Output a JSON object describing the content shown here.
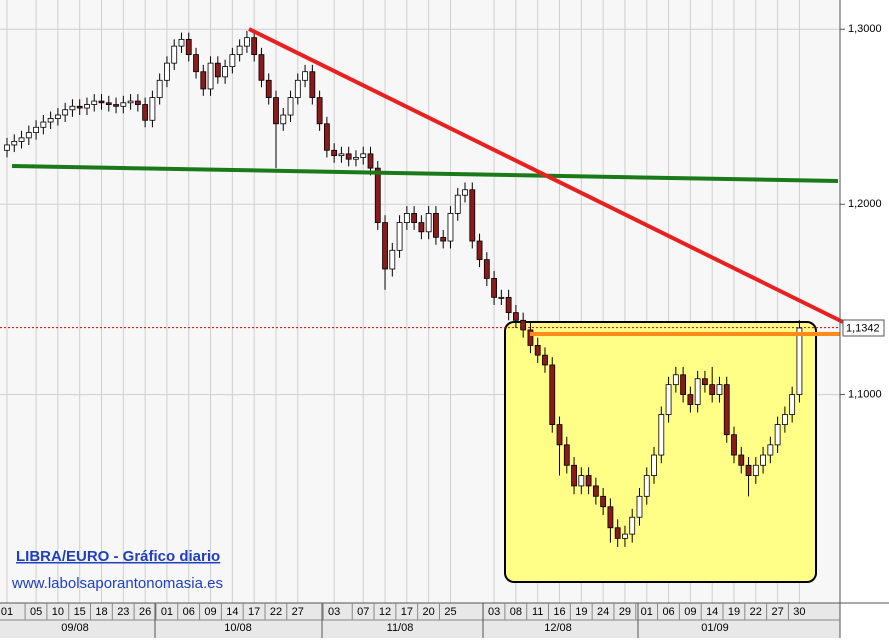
{
  "chart_data": {
    "type": "candlestick",
    "title": "LIBRA/EURO - Gráfico diario",
    "subtitle": "www.labolsaporantonomasia.es",
    "log_scale": true,
    "grid": true,
    "up_color": "#ffffff",
    "down_color": "#8b1a1a",
    "ylim": [
      1.0,
      1.3175
    ],
    "yticks": [
      {
        "value": 1.1,
        "label": "1,1000"
      },
      {
        "value": 1.2,
        "label": "1,2000"
      },
      {
        "value": 1.3,
        "label": "1,3000"
      }
    ],
    "current_price": {
      "value": 1.1342,
      "label": "1,1342"
    },
    "month_labels": [
      "09/08",
      "10/08",
      "11/08",
      "12/08",
      "01/09"
    ],
    "categories": [
      "01",
      null,
      null,
      null,
      "05",
      null,
      null,
      "10",
      null,
      null,
      "15",
      null,
      null,
      "18",
      null,
      null,
      "23",
      null,
      null,
      "26",
      null,
      null,
      "01",
      null,
      null,
      "06",
      null,
      null,
      "09",
      null,
      null,
      "14",
      null,
      null,
      "17",
      null,
      null,
      "22",
      null,
      null,
      "27",
      null,
      null,
      null,
      null,
      "03",
      null,
      null,
      null,
      "07",
      null,
      null,
      "12",
      null,
      null,
      "17",
      null,
      null,
      "20",
      null,
      null,
      "25",
      null,
      null,
      null,
      null,
      null,
      "03",
      null,
      null,
      "08",
      null,
      null,
      "11",
      null,
      null,
      "16",
      null,
      null,
      "19",
      null,
      null,
      "24",
      null,
      null,
      "29",
      null,
      null,
      "01",
      null,
      null,
      "06",
      null,
      null,
      "09",
      null,
      null,
      "14",
      null,
      null,
      "19",
      null,
      null,
      "22",
      null,
      null,
      "27",
      null,
      null,
      "30"
    ],
    "open": [
      1.23,
      1.233,
      1.235,
      1.237,
      1.24,
      1.243,
      1.246,
      1.248,
      1.25,
      1.253,
      1.255,
      1.254,
      1.256,
      1.258,
      1.257,
      1.256,
      1.255,
      1.257,
      1.258,
      1.256,
      1.247,
      1.26,
      1.27,
      1.28,
      1.29,
      1.294,
      1.285,
      1.275,
      1.265,
      1.28,
      1.272,
      1.278,
      1.285,
      1.29,
      1.295,
      1.285,
      1.27,
      1.26,
      1.245,
      1.25,
      1.26,
      1.27,
      1.275,
      1.26,
      1.245,
      1.23,
      1.227,
      1.228,
      1.225,
      1.226,
      1.228,
      1.22,
      1.19,
      1.165,
      1.175,
      1.19,
      1.195,
      1.19,
      1.185,
      1.195,
      1.182,
      1.18,
      1.195,
      1.205,
      1.208,
      1.18,
      1.17,
      1.16,
      1.15,
      1.15,
      1.142,
      1.138,
      1.133,
      1.125,
      1.12,
      1.115,
      1.085,
      1.075,
      1.065,
      1.055,
      1.06,
      1.055,
      1.05,
      1.045,
      1.035,
      1.03,
      1.032,
      1.04,
      1.05,
      1.06,
      1.07,
      1.09,
      1.105,
      1.11,
      1.1,
      1.095,
      1.108,
      1.105,
      1.1,
      1.105,
      1.08,
      1.07,
      1.065,
      1.06,
      1.065,
      1.07,
      1.075,
      1.085,
      1.09,
      1.1
    ],
    "high": [
      1.237,
      1.239,
      1.241,
      1.244,
      1.247,
      1.25,
      1.252,
      1.254,
      1.257,
      1.259,
      1.259,
      1.26,
      1.262,
      1.262,
      1.261,
      1.26,
      1.261,
      1.262,
      1.262,
      1.26,
      1.264,
      1.274,
      1.284,
      1.294,
      1.298,
      1.298,
      1.289,
      1.279,
      1.284,
      1.284,
      1.282,
      1.289,
      1.294,
      1.299,
      1.299,
      1.289,
      1.274,
      1.264,
      1.254,
      1.264,
      1.274,
      1.279,
      1.279,
      1.264,
      1.249,
      1.234,
      1.232,
      1.232,
      1.23,
      1.232,
      1.232,
      1.224,
      1.194,
      1.179,
      1.194,
      1.199,
      1.199,
      1.194,
      1.199,
      1.199,
      1.186,
      1.199,
      1.209,
      1.212,
      1.212,
      1.184,
      1.174,
      1.164,
      1.154,
      1.154,
      1.146,
      1.142,
      1.137,
      1.129,
      1.124,
      1.119,
      1.089,
      1.079,
      1.069,
      1.064,
      1.064,
      1.059,
      1.054,
      1.049,
      1.039,
      1.036,
      1.044,
      1.054,
      1.064,
      1.074,
      1.094,
      1.109,
      1.114,
      1.114,
      1.104,
      1.112,
      1.112,
      1.114,
      1.109,
      1.109,
      1.084,
      1.074,
      1.069,
      1.069,
      1.074,
      1.079,
      1.089,
      1.094,
      1.104,
      1.138
    ],
    "low": [
      1.226,
      1.229,
      1.231,
      1.233,
      1.236,
      1.239,
      1.242,
      1.244,
      1.246,
      1.249,
      1.25,
      1.25,
      1.252,
      1.253,
      1.252,
      1.251,
      1.251,
      1.253,
      1.252,
      1.243,
      1.243,
      1.256,
      1.266,
      1.276,
      1.286,
      1.281,
      1.271,
      1.261,
      1.261,
      1.268,
      1.268,
      1.274,
      1.281,
      1.286,
      1.281,
      1.266,
      1.256,
      1.22,
      1.241,
      1.246,
      1.256,
      1.266,
      1.256,
      1.241,
      1.226,
      1.223,
      1.223,
      1.221,
      1.221,
      1.222,
      1.216,
      1.186,
      1.154,
      1.161,
      1.171,
      1.186,
      1.186,
      1.181,
      1.181,
      1.178,
      1.176,
      1.176,
      1.191,
      1.201,
      1.176,
      1.166,
      1.156,
      1.146,
      1.146,
      1.138,
      1.134,
      1.129,
      1.121,
      1.116,
      1.111,
      1.081,
      1.06,
      1.061,
      1.051,
      1.051,
      1.051,
      1.046,
      1.041,
      1.028,
      1.026,
      1.026,
      1.028,
      1.036,
      1.046,
      1.056,
      1.066,
      1.086,
      1.101,
      1.096,
      1.091,
      1.091,
      1.101,
      1.096,
      1.096,
      1.076,
      1.066,
      1.061,
      1.05,
      1.056,
      1.061,
      1.066,
      1.071,
      1.081,
      1.086,
      1.096
    ],
    "close": [
      1.233,
      1.235,
      1.237,
      1.24,
      1.243,
      1.246,
      1.248,
      1.25,
      1.253,
      1.255,
      1.254,
      1.256,
      1.258,
      1.257,
      1.256,
      1.255,
      1.257,
      1.258,
      1.256,
      1.247,
      1.26,
      1.27,
      1.28,
      1.29,
      1.294,
      1.285,
      1.275,
      1.265,
      1.28,
      1.272,
      1.278,
      1.285,
      1.29,
      1.295,
      1.285,
      1.27,
      1.26,
      1.245,
      1.25,
      1.26,
      1.27,
      1.275,
      1.26,
      1.245,
      1.23,
      1.227,
      1.228,
      1.225,
      1.226,
      1.228,
      1.22,
      1.19,
      1.165,
      1.175,
      1.19,
      1.195,
      1.19,
      1.185,
      1.195,
      1.182,
      1.18,
      1.195,
      1.205,
      1.208,
      1.18,
      1.17,
      1.16,
      1.15,
      1.15,
      1.142,
      1.138,
      1.133,
      1.125,
      1.12,
      1.115,
      1.085,
      1.075,
      1.065,
      1.055,
      1.06,
      1.055,
      1.05,
      1.045,
      1.035,
      1.03,
      1.032,
      1.04,
      1.05,
      1.06,
      1.07,
      1.09,
      1.105,
      1.11,
      1.1,
      1.095,
      1.108,
      1.105,
      1.1,
      1.105,
      1.08,
      1.07,
      1.065,
      1.06,
      1.065,
      1.07,
      1.075,
      1.085,
      1.09,
      1.1,
      1.134
    ]
  }
}
